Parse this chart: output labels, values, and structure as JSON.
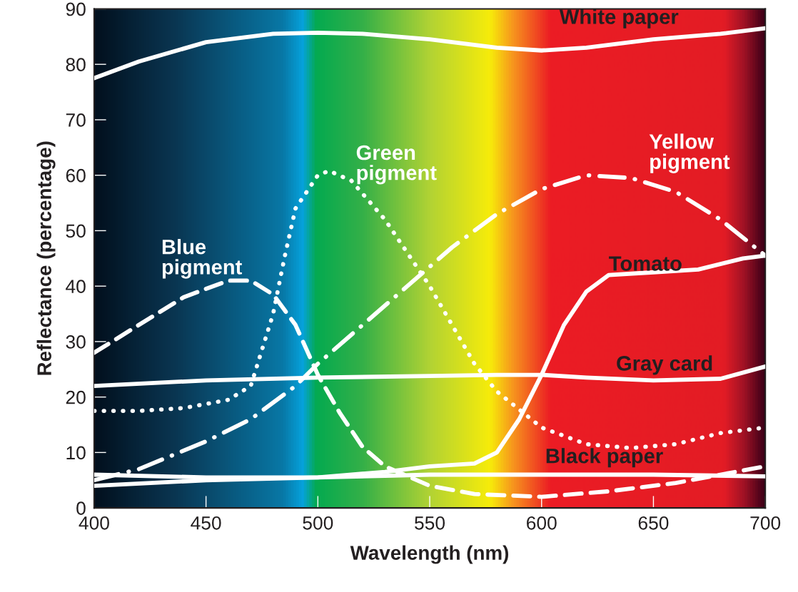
{
  "chart_data": {
    "type": "line",
    "xlabel": "Wavelength (nm)",
    "ylabel": "Reflectance (percentage)",
    "xlim": [
      400,
      700
    ],
    "xticks": [
      400,
      450,
      500,
      550,
      600,
      650,
      700
    ],
    "ylim": [
      0,
      90
    ],
    "yticks": [
      0,
      10,
      20,
      30,
      40,
      50,
      60,
      70,
      80,
      90
    ],
    "grid": false,
    "legend": false,
    "marker": "none",
    "series": [
      {
        "name": "White paper",
        "color": "#ffffff",
        "line_style": "solid",
        "x": [
          400,
          420,
          450,
          480,
          500,
          520,
          550,
          580,
          600,
          620,
          650,
          680,
          700
        ],
        "values": [
          77.5,
          80.5,
          84,
          85.5,
          85.7,
          85.5,
          84.5,
          83,
          82.5,
          83,
          84.5,
          85.5,
          86.5
        ]
      },
      {
        "name": "Blue pigment",
        "color": "#ffffff",
        "line_style": "dashed",
        "x": [
          400,
          420,
          440,
          460,
          470,
          480,
          490,
          500,
          510,
          520,
          530,
          550,
          570,
          600,
          630,
          660,
          700
        ],
        "values": [
          28,
          33,
          38,
          41,
          41,
          38.5,
          33,
          24,
          17,
          11,
          7.5,
          4,
          2.5,
          2,
          3,
          4.5,
          7.5
        ]
      },
      {
        "name": "Green pigment",
        "color": "#ffffff",
        "line_style": "dotted",
        "x": [
          400,
          420,
          440,
          460,
          470,
          480,
          485,
          490,
          500,
          505,
          515,
          530,
          550,
          570,
          580,
          600,
          620,
          640,
          660,
          680,
          700
        ],
        "values": [
          17.5,
          17.5,
          18,
          19.5,
          22,
          35,
          45,
          54,
          60,
          60.8,
          59,
          52,
          40,
          26,
          21,
          14.5,
          11.5,
          10.8,
          11.5,
          13.5,
          14.5
        ]
      },
      {
        "name": "Yellow pigment",
        "color": "#ffffff",
        "line_style": "dashdot",
        "x": [
          400,
          420,
          450,
          470,
          490,
          500,
          520,
          540,
          560,
          580,
          600,
          620,
          640,
          660,
          680,
          700
        ],
        "values": [
          5,
          7,
          12,
          16,
          22,
          26,
          33,
          40,
          47,
          53,
          57.5,
          60,
          59.5,
          57,
          52,
          45.5
        ]
      },
      {
        "name": "Tomato",
        "color": "#ffffff",
        "line_style": "solid",
        "x": [
          400,
          450,
          500,
          530,
          550,
          570,
          580,
          590,
          600,
          610,
          620,
          630,
          650,
          670,
          690,
          700
        ],
        "values": [
          4,
          5,
          5.5,
          6.5,
          7.5,
          8,
          10,
          16,
          24,
          33,
          39,
          42,
          42.5,
          43,
          45,
          45.5
        ]
      },
      {
        "name": "Gray card",
        "color": "#ffffff",
        "line_style": "solid",
        "x": [
          400,
          450,
          500,
          550,
          580,
          600,
          620,
          650,
          680,
          700
        ],
        "values": [
          22,
          23,
          23.5,
          23.8,
          24,
          24,
          23.5,
          23,
          23.3,
          25.5
        ]
      },
      {
        "name": "Black paper",
        "color": "#ffffff",
        "line_style": "solid",
        "x": [
          400,
          450,
          500,
          550,
          600,
          650,
          700
        ],
        "values": [
          6,
          5.5,
          5.5,
          6,
          6,
          6,
          5.7
        ]
      }
    ]
  }
}
